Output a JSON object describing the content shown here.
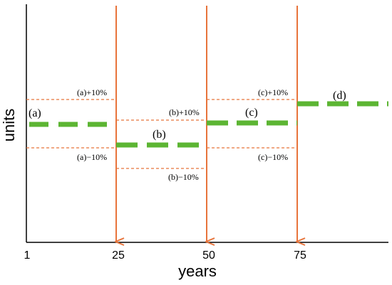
{
  "colors": {
    "axis": "#000000",
    "orange": "#e8743b",
    "green": "#5cb533"
  },
  "axes": {
    "y_label": "units",
    "x_label": "years",
    "x_ticks": [
      "1",
      "25",
      "50",
      "75"
    ]
  },
  "segments": {
    "a": {
      "label": "(a)",
      "plus": "(a)+10%",
      "minus": "(a)−10%"
    },
    "b": {
      "label": "(b)",
      "plus": "(b)+10%",
      "minus": "(b)−10%"
    },
    "c": {
      "label": "(c)",
      "plus": "(c)+10%",
      "minus": "(c)−10%"
    },
    "d": {
      "label": "(d)"
    }
  }
}
